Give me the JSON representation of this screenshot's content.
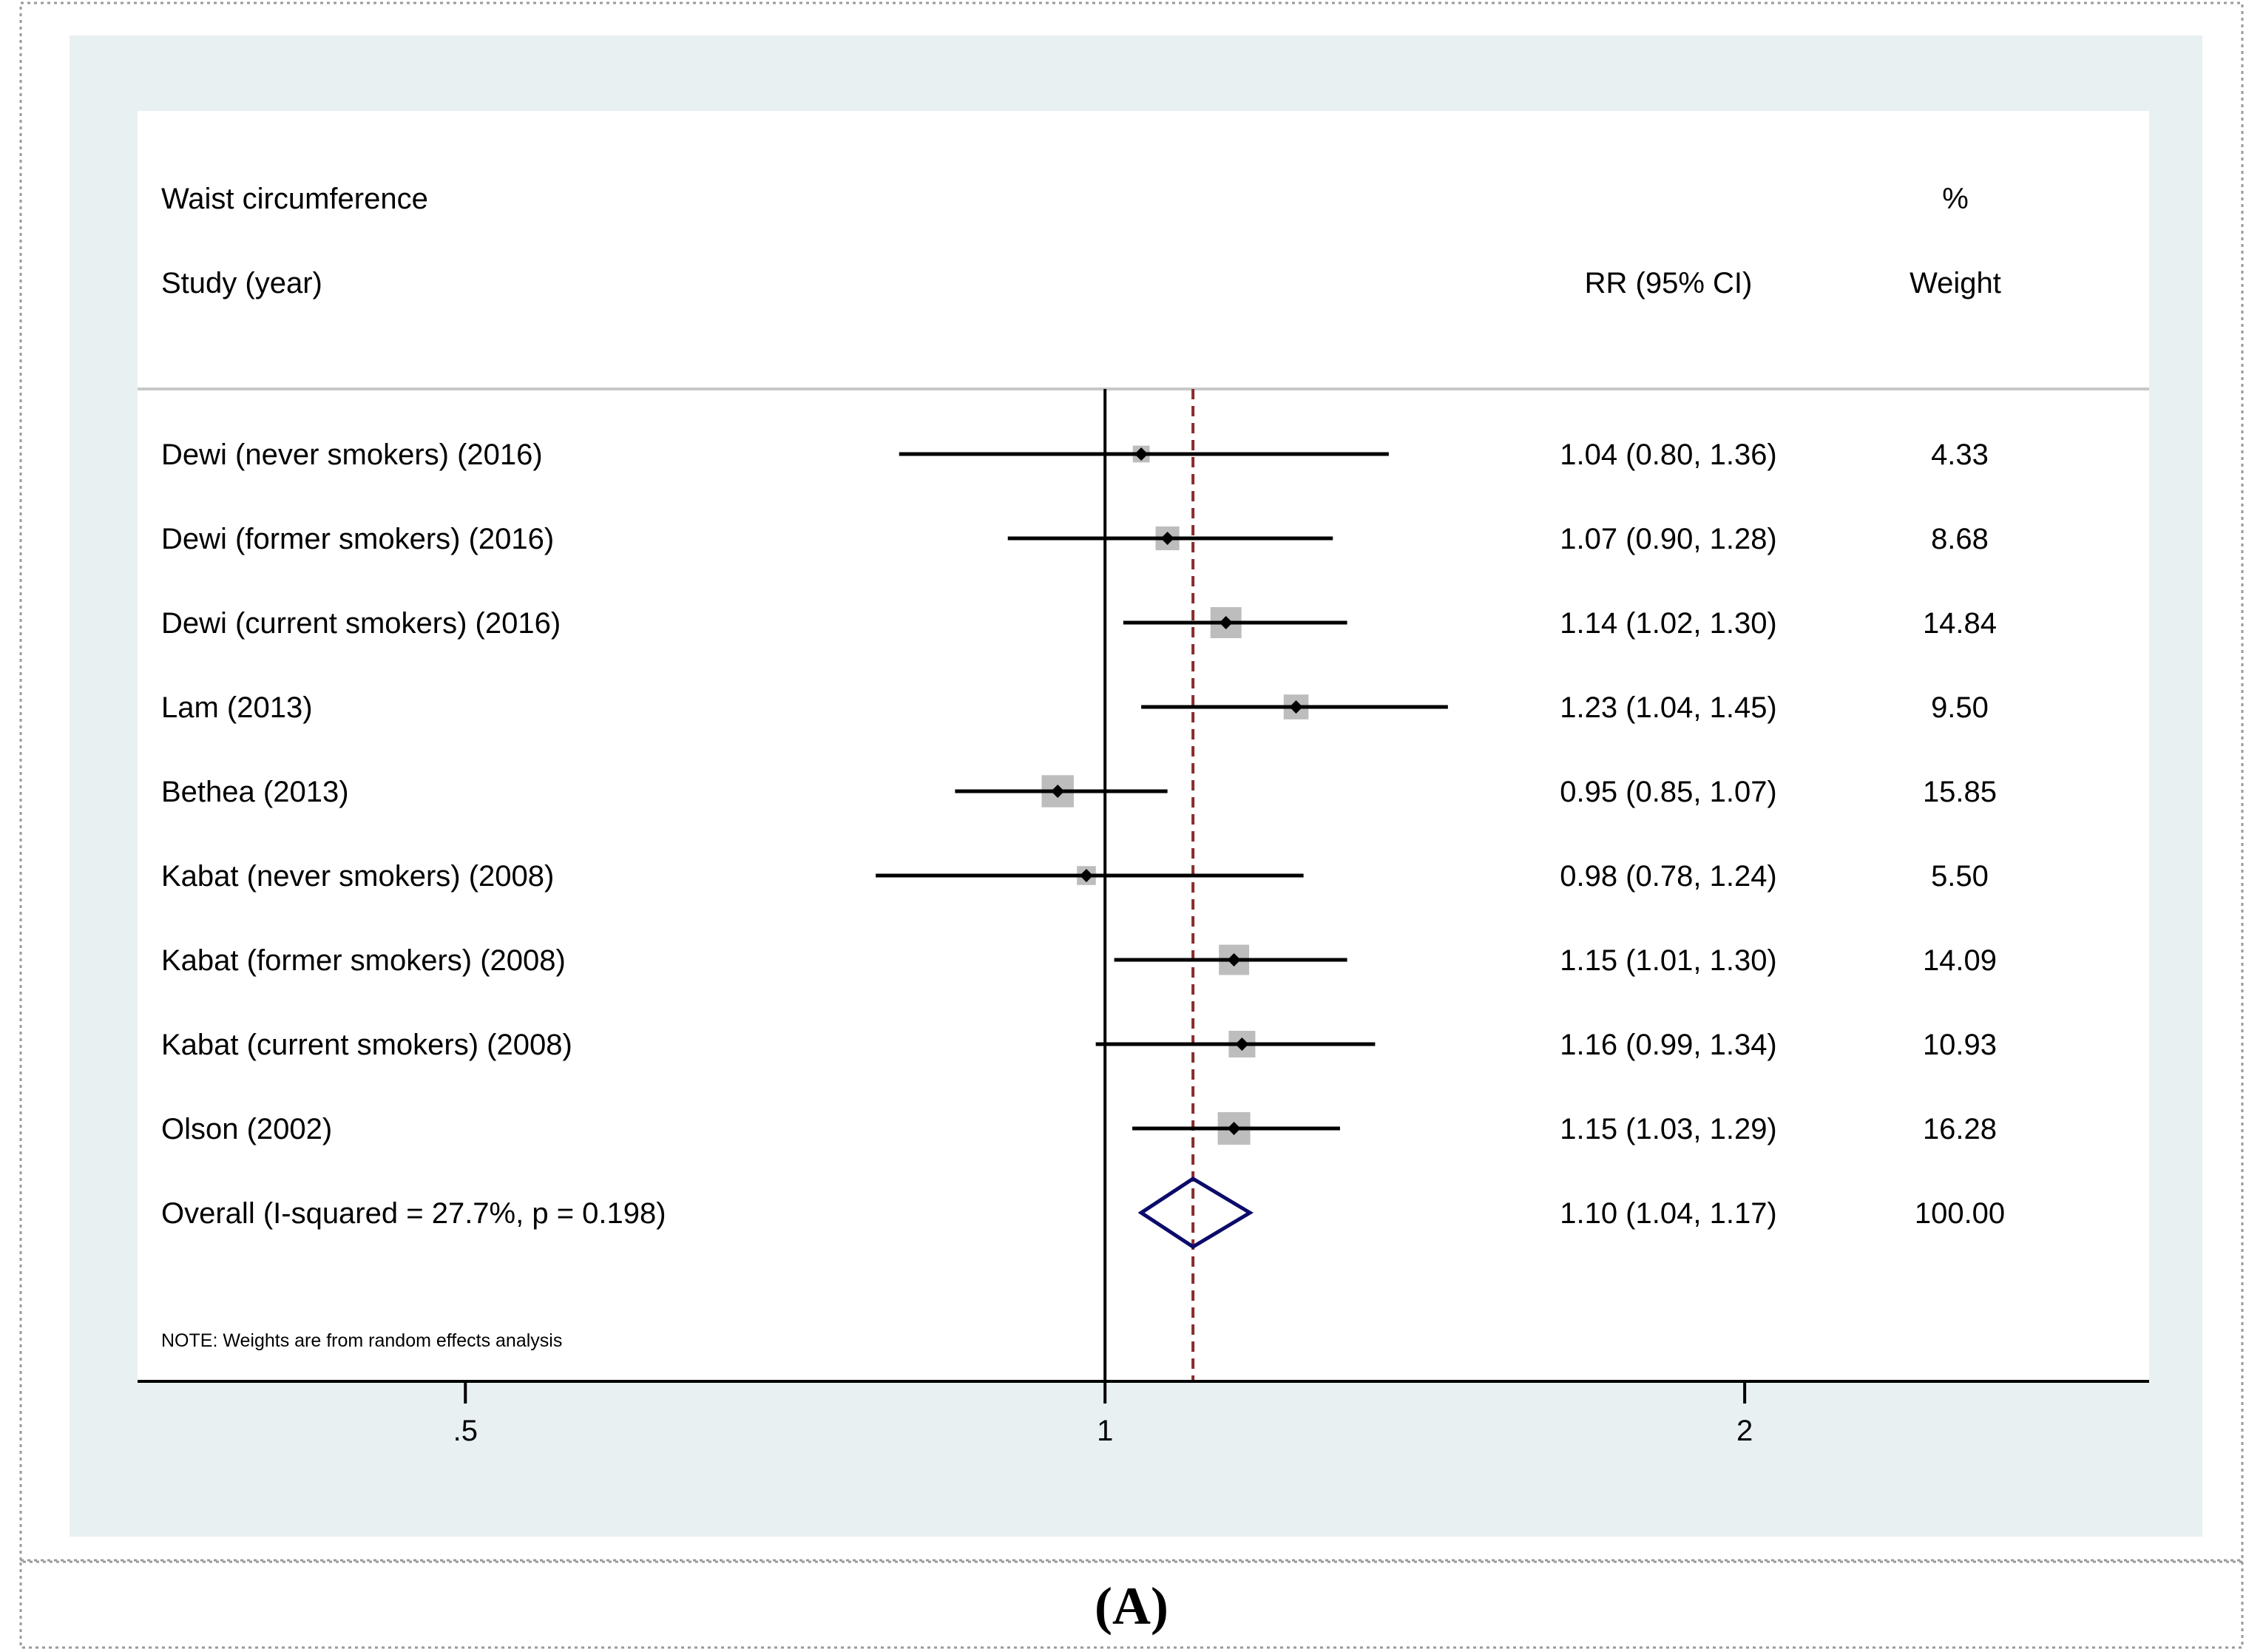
{
  "colors": {
    "outer_bg": "#e8f0f2",
    "plot_bg": "#ffffff",
    "box": "#bdbdbd",
    "ci_line": "#000000",
    "null_line": "#000000",
    "overall_line": "#8b2b2b",
    "diamond": "#0b0b6b"
  },
  "headers": {
    "subgroup": "Waist circumference",
    "study": "Study (year)",
    "rr": "RR (95% CI)",
    "weight_pct": "%",
    "weight": "Weight"
  },
  "note": "NOTE: Weights are from random effects analysis",
  "caption": "(A)",
  "chart_data": {
    "type": "forest",
    "scale": "log",
    "xlim": [
      0.3505,
      3.1
    ],
    "null_value": 1,
    "overall_value": 1.1,
    "xticks": [
      {
        "value": 0.5,
        "label": ".5"
      },
      {
        "value": 1,
        "label": "1"
      },
      {
        "value": 2,
        "label": "2"
      }
    ],
    "studies": [
      {
        "label": "Dewi (never smokers) (2016)",
        "rr": 1.04,
        "lo": 0.8,
        "hi": 1.36,
        "ci_text": "1.04 (0.80, 1.36)",
        "weight": 4.33,
        "weight_text": "4.33"
      },
      {
        "label": "Dewi (former smokers) (2016)",
        "rr": 1.07,
        "lo": 0.9,
        "hi": 1.28,
        "ci_text": "1.07 (0.90, 1.28)",
        "weight": 8.68,
        "weight_text": "8.68"
      },
      {
        "label": "Dewi (current smokers) (2016)",
        "rr": 1.14,
        "lo": 1.02,
        "hi": 1.3,
        "ci_text": "1.14 (1.02, 1.30)",
        "weight": 14.84,
        "weight_text": "14.84"
      },
      {
        "label": "Lam (2013)",
        "rr": 1.23,
        "lo": 1.04,
        "hi": 1.45,
        "ci_text": "1.23 (1.04, 1.45)",
        "weight": 9.5,
        "weight_text": "9.50"
      },
      {
        "label": "Bethea (2013)",
        "rr": 0.95,
        "lo": 0.85,
        "hi": 1.07,
        "ci_text": "0.95 (0.85, 1.07)",
        "weight": 15.85,
        "weight_text": "15.85"
      },
      {
        "label": "Kabat (never smokers) (2008)",
        "rr": 0.98,
        "lo": 0.78,
        "hi": 1.24,
        "ci_text": "0.98 (0.78, 1.24)",
        "weight": 5.5,
        "weight_text": "5.50"
      },
      {
        "label": "Kabat (former smokers) (2008)",
        "rr": 1.15,
        "lo": 1.01,
        "hi": 1.3,
        "ci_text": "1.15 (1.01, 1.30)",
        "weight": 14.09,
        "weight_text": "14.09"
      },
      {
        "label": "Kabat (current smokers) (2008)",
        "rr": 1.16,
        "lo": 0.99,
        "hi": 1.34,
        "ci_text": "1.16 (0.99, 1.34)",
        "weight": 10.93,
        "weight_text": "10.93"
      },
      {
        "label": "Olson (2002)",
        "rr": 1.15,
        "lo": 1.03,
        "hi": 1.29,
        "ci_text": "1.15 (1.03, 1.29)",
        "weight": 16.28,
        "weight_text": "16.28"
      }
    ],
    "overall": {
      "label": "Overall  (I-squared = 27.7%, p = 0.198)",
      "rr": 1.1,
      "lo": 1.04,
      "hi": 1.17,
      "ci_text": "1.10 (1.04, 1.17)",
      "weight_text": "100.00"
    }
  }
}
